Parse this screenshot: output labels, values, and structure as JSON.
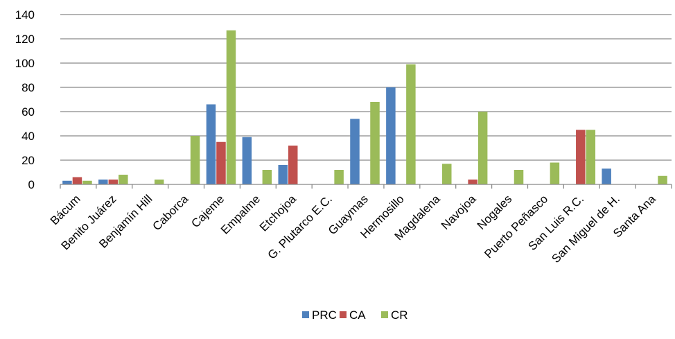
{
  "chart_data": {
    "type": "bar",
    "title": "",
    "xlabel": "",
    "ylabel": "",
    "ylim": [
      0,
      140
    ],
    "yticks": [
      0,
      20,
      40,
      60,
      80,
      100,
      120,
      140
    ],
    "grid": true,
    "legend_position": "bottom",
    "categories": [
      "Bácum",
      "Benito Juárez",
      "Benjamín Hill",
      "Caborca",
      "Cajeme",
      "Empalme",
      "Etchojoa",
      "G. Plutarco E.C.",
      "Guaymas",
      "Hermosillo",
      "Magdalena",
      "Navojoa",
      "Nogales",
      "Puerto Peñasco",
      "San Luis R.C.",
      "San Miguel de H.",
      "Santa Ana"
    ],
    "series": [
      {
        "name": "PRC",
        "color": "#4F81BD",
        "values": [
          3,
          4,
          0,
          0,
          66,
          39,
          16,
          0,
          54,
          80,
          0,
          0,
          0,
          0,
          0,
          13,
          0
        ]
      },
      {
        "name": "CA",
        "color": "#C0504D",
        "values": [
          6,
          4,
          0,
          0,
          35,
          0,
          32,
          0,
          0,
          0,
          0,
          4,
          0,
          0,
          45,
          0,
          0
        ]
      },
      {
        "name": "CR",
        "color": "#9BBB59",
        "values": [
          3,
          8,
          4,
          40,
          127,
          12,
          0,
          12,
          68,
          99,
          17,
          60,
          12,
          18,
          45,
          0,
          7
        ]
      }
    ]
  }
}
